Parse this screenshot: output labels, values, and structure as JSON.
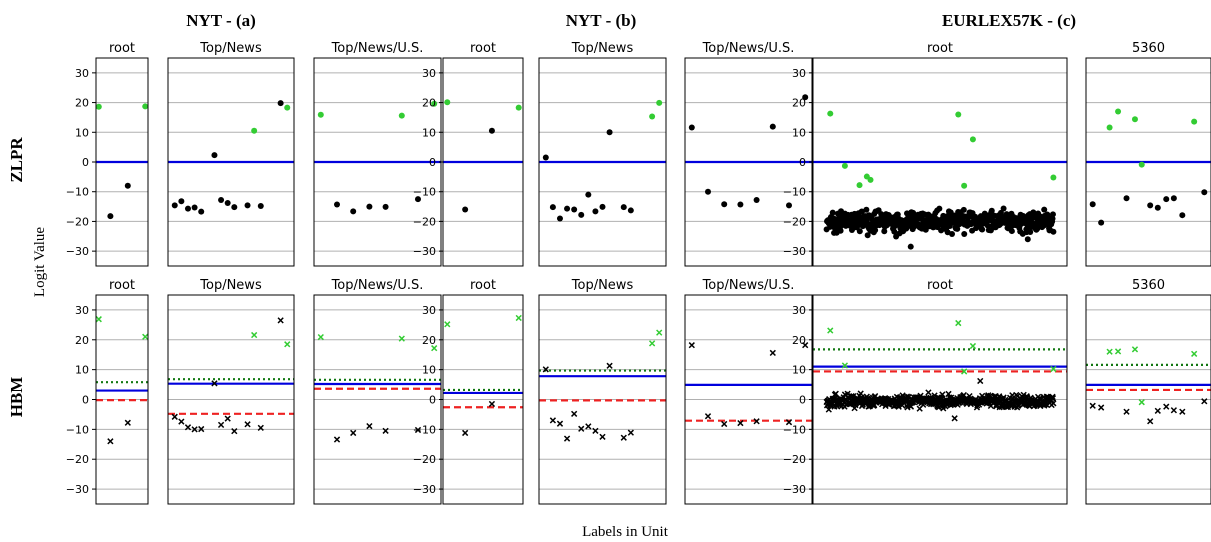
{
  "figure": {
    "y_label": "Logit Value",
    "x_label": "Labels in Unit",
    "group_titles": [
      "NYT - (a)",
      "NYT - (b)",
      "EURLEX57K - (c)"
    ],
    "row_labels": [
      "ZLPR",
      "HBM"
    ]
  },
  "chart_data": {
    "type": "scatter",
    "ylim": [
      -35,
      35
    ],
    "yticks": [
      30,
      20,
      10,
      0,
      -10,
      -20,
      -30
    ],
    "grid": "horizontal",
    "colors": {
      "positive": "#33cc33",
      "negative": "#000000",
      "blue": "#0000dd",
      "red": "#ee2222",
      "green": "#117711"
    },
    "panels": [
      {
        "row": "ZLPR",
        "group": "NYT - (a)",
        "title": "root",
        "marker": "circle",
        "pos": [
          [
            0.0,
            18.6
          ],
          [
            4.0,
            18.7
          ]
        ],
        "neg": [
          [
            1.0,
            -18.2
          ],
          [
            2.5,
            -8.0
          ]
        ],
        "lines": {
          "blue": 0
        }
      },
      {
        "row": "ZLPR",
        "group": "NYT - (a)",
        "title": "Top/News",
        "marker": "circle",
        "pos": [
          [
            12.0,
            10.5
          ],
          [
            17.0,
            18.3
          ]
        ],
        "neg": [
          [
            0.0,
            -14.6
          ],
          [
            1.0,
            -13.2
          ],
          [
            2.0,
            -15.7
          ],
          [
            3.0,
            -15.3
          ],
          [
            4.0,
            -16.7
          ],
          [
            6.0,
            2.3
          ],
          [
            7.0,
            -12.8
          ],
          [
            8.0,
            -13.8
          ],
          [
            9.0,
            -15.2
          ],
          [
            11.0,
            -14.6
          ],
          [
            13.0,
            -14.8
          ],
          [
            16.0,
            19.8
          ]
        ],
        "lines": {
          "blue": 0
        }
      },
      {
        "row": "ZLPR",
        "group": "NYT - (a)",
        "title": "Top/News/U.S.",
        "marker": "circle",
        "pos": [
          [
            0.0,
            15.9
          ],
          [
            10.0,
            15.6
          ],
          [
            14.0,
            19.6
          ]
        ],
        "neg": [
          [
            2.0,
            -14.3
          ],
          [
            4.0,
            -16.6
          ],
          [
            6.0,
            -15.0
          ],
          [
            8.0,
            -15.1
          ],
          [
            12.0,
            -12.5
          ]
        ],
        "lines": {
          "blue": 0
        }
      },
      {
        "row": "ZLPR",
        "group": "NYT - (b)",
        "title": "root",
        "marker": "circle",
        "pos": [
          [
            4.0,
            18.3
          ],
          [
            0.0,
            20.1
          ]
        ],
        "neg": [
          [
            1.0,
            -16.0
          ],
          [
            2.5,
            10.5
          ]
        ],
        "lines": {
          "blue": 0
        }
      },
      {
        "row": "ZLPR",
        "group": "NYT - (b)",
        "title": "Top/News",
        "marker": "circle",
        "pos": [
          [
            15.0,
            15.3
          ],
          [
            16.0,
            19.9
          ]
        ],
        "neg": [
          [
            0.0,
            1.5
          ],
          [
            1.0,
            -15.2
          ],
          [
            2.0,
            -19.0
          ],
          [
            3.0,
            -15.7
          ],
          [
            4.0,
            -16.0
          ],
          [
            5.0,
            -17.8
          ],
          [
            6.0,
            -11.0
          ],
          [
            7.0,
            -16.6
          ],
          [
            8.0,
            -15.1
          ],
          [
            9.0,
            10.0
          ],
          [
            11.0,
            -15.2
          ],
          [
            12.0,
            -16.3
          ]
        ],
        "lines": {
          "blue": 0
        }
      },
      {
        "row": "ZLPR",
        "group": "NYT - (b)",
        "title": "Top/News/U.S.",
        "marker": "circle",
        "pos": [],
        "neg": [
          [
            0.0,
            11.6
          ],
          [
            2.0,
            -10.0
          ],
          [
            4.0,
            -14.2
          ],
          [
            6.0,
            -14.3
          ],
          [
            8.0,
            -12.8
          ],
          [
            10.0,
            11.9
          ],
          [
            12.0,
            -14.6
          ],
          [
            14.0,
            21.8
          ]
        ],
        "lines": {
          "blue": 0
        }
      },
      {
        "row": "ZLPR",
        "group": "EURLEX57K - (c)",
        "title": "root",
        "marker": "circle",
        "pos": [
          [
            0.5,
            16.3
          ],
          [
            2.5,
            -1.3
          ],
          [
            4.5,
            -7.8
          ],
          [
            5.5,
            -4.9
          ],
          [
            6.0,
            -6.0
          ],
          [
            18.0,
            16.0
          ],
          [
            18.8,
            -8.0
          ],
          [
            20.0,
            7.6
          ],
          [
            31.0,
            -5.2
          ]
        ],
        "neg": [],
        "neg_cloud": {
          "count": 520,
          "y_center": -20,
          "y_spread": 3.5,
          "extra": [
            [
              11.5,
              -28.5
            ],
            [
              27.5,
              -26.0
            ]
          ]
        },
        "lines": {
          "blue": 0
        }
      },
      {
        "row": "ZLPR",
        "group": "EURLEX57K - (c)",
        "title": "5360",
        "marker": "circle",
        "pos": [
          [
            2.0,
            11.6
          ],
          [
            3.0,
            17.0
          ],
          [
            5.0,
            14.4
          ],
          [
            5.8,
            -0.9
          ],
          [
            12.0,
            13.6
          ]
        ],
        "neg": [
          [
            0.0,
            -14.2
          ],
          [
            1.0,
            -20.4
          ],
          [
            4.0,
            -12.2
          ],
          [
            6.8,
            -14.6
          ],
          [
            7.7,
            -15.4
          ],
          [
            8.7,
            -12.5
          ],
          [
            9.6,
            -12.2
          ],
          [
            10.6,
            -17.9
          ],
          [
            13.2,
            -10.2
          ]
        ],
        "lines": {
          "blue": 0
        }
      },
      {
        "row": "HBM",
        "group": "NYT - (a)",
        "title": "root",
        "marker": "x",
        "pos": [
          [
            0.0,
            26.9
          ],
          [
            4.0,
            21.0
          ]
        ],
        "neg": [
          [
            1.0,
            -14.0
          ],
          [
            2.5,
            -7.8
          ]
        ],
        "lines": {
          "blue": 3.0,
          "red": -0.2,
          "green": 5.8
        }
      },
      {
        "row": "HBM",
        "group": "NYT - (a)",
        "title": "Top/News",
        "marker": "x",
        "pos": [
          [
            12.0,
            21.6
          ],
          [
            17.0,
            18.5
          ]
        ],
        "neg": [
          [
            0.0,
            -5.8
          ],
          [
            1.0,
            -7.4
          ],
          [
            2.0,
            -9.3
          ],
          [
            3.0,
            -10.0
          ],
          [
            4.0,
            -9.9
          ],
          [
            6.0,
            5.4
          ],
          [
            7.0,
            -8.5
          ],
          [
            8.0,
            -6.4
          ],
          [
            9.0,
            -10.6
          ],
          [
            11.0,
            -8.3
          ],
          [
            13.0,
            -9.5
          ],
          [
            16.0,
            26.5
          ]
        ],
        "lines": {
          "blue": 5.3,
          "red": -4.8,
          "green": 6.8
        }
      },
      {
        "row": "HBM",
        "group": "NYT - (a)",
        "title": "Top/News/U.S.",
        "marker": "x",
        "pos": [
          [
            0.0,
            20.9
          ],
          [
            10.0,
            20.4
          ],
          [
            14.0,
            17.2
          ]
        ],
        "neg": [
          [
            2.0,
            -13.4
          ],
          [
            4.0,
            -11.2
          ],
          [
            6.0,
            -8.9
          ],
          [
            8.0,
            -10.5
          ],
          [
            12.0,
            -10.2
          ]
        ],
        "lines": {
          "blue": 5.2,
          "red": 3.6,
          "green": 6.6
        }
      },
      {
        "row": "HBM",
        "group": "NYT - (b)",
        "title": "root",
        "marker": "x",
        "pos": [
          [
            0.0,
            25.2
          ],
          [
            4.0,
            27.3
          ]
        ],
        "neg": [
          [
            1.0,
            -11.2
          ],
          [
            2.5,
            -1.5
          ]
        ],
        "lines": {
          "blue": 2.2,
          "red": -2.6,
          "green": 3.2
        }
      },
      {
        "row": "HBM",
        "group": "NYT - (b)",
        "title": "Top/News",
        "marker": "x",
        "pos": [
          [
            15.0,
            18.8
          ],
          [
            16.0,
            22.4
          ]
        ],
        "neg": [
          [
            0.0,
            10.1
          ],
          [
            1.0,
            -7.0
          ],
          [
            2.0,
            -8.1
          ],
          [
            3.0,
            -13.1
          ],
          [
            4.0,
            -4.8
          ],
          [
            5.0,
            -9.8
          ],
          [
            6.0,
            -9.0
          ],
          [
            7.0,
            -10.5
          ],
          [
            8.0,
            -12.5
          ],
          [
            9.0,
            11.3
          ],
          [
            11.0,
            -12.8
          ],
          [
            12.0,
            -11.1
          ]
        ],
        "lines": {
          "blue": 7.8,
          "red": -0.3,
          "green": 9.7
        }
      },
      {
        "row": "HBM",
        "group": "NYT - (b)",
        "title": "Top/News/U.S.",
        "marker": "x",
        "pos": [],
        "neg": [
          [
            0.0,
            18.2
          ],
          [
            2.0,
            -5.6
          ],
          [
            4.0,
            -8.2
          ],
          [
            6.0,
            -7.9
          ],
          [
            8.0,
            -7.3
          ],
          [
            10.0,
            15.6
          ],
          [
            12.0,
            -7.6
          ],
          [
            14.0,
            18.2
          ]
        ],
        "lines": {
          "blue": 4.9,
          "red": -7.1
        }
      },
      {
        "row": "HBM",
        "group": "EURLEX57K - (c)",
        "title": "root",
        "marker": "x",
        "pos": [
          [
            0.5,
            23.1
          ],
          [
            2.5,
            11.4
          ],
          [
            18.0,
            25.6
          ],
          [
            18.8,
            9.4
          ],
          [
            20.0,
            17.9
          ],
          [
            31.0,
            10.2
          ]
        ],
        "neg": [],
        "neg_cloud": {
          "count": 520,
          "y_center": -0.5,
          "y_spread": 2.0,
          "extra": [
            [
              21.0,
              6.2
            ],
            [
              17.5,
              -6.3
            ]
          ]
        },
        "lines": {
          "blue": 11.0,
          "red": 9.4,
          "green": 16.8
        }
      },
      {
        "row": "HBM",
        "group": "EURLEX57K - (c)",
        "title": "5360",
        "marker": "x",
        "pos": [
          [
            2.0,
            16.0
          ],
          [
            3.0,
            16.1
          ],
          [
            5.0,
            16.8
          ],
          [
            5.8,
            -0.9
          ],
          [
            12.0,
            15.3
          ]
        ],
        "neg": [
          [
            0.0,
            -2.1
          ],
          [
            1.0,
            -2.7
          ],
          [
            4.0,
            -4.1
          ],
          [
            6.8,
            -7.3
          ],
          [
            7.7,
            -3.8
          ],
          [
            8.7,
            -2.4
          ],
          [
            9.6,
            -3.6
          ],
          [
            10.6,
            -4.1
          ],
          [
            13.2,
            -0.6
          ]
        ],
        "lines": {
          "blue": 4.9,
          "red": 3.2,
          "green": 11.6
        }
      }
    ]
  }
}
